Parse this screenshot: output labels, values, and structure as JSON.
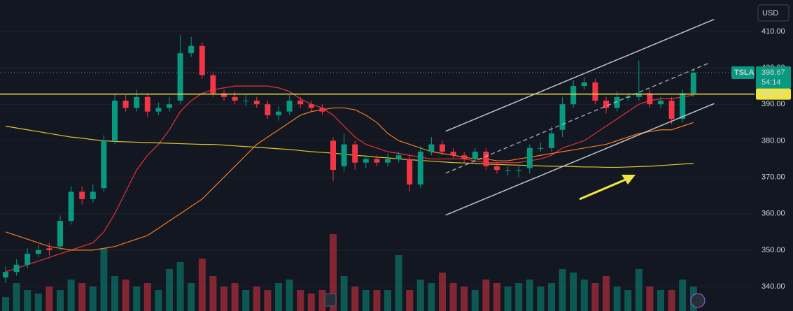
{
  "chart_data": {
    "type": "candlestick",
    "symbol": "TSLA",
    "currency": "USD",
    "countdown": "54:14",
    "last_price": 398.67,
    "up_color": "#089981",
    "down_color": "#f23645",
    "ylim": [
      333.3,
      418.6
    ],
    "yticks": [
      {
        "value": 340,
        "label": "340.00"
      },
      {
        "value": 350,
        "label": "350.00"
      },
      {
        "value": 360,
        "label": "360.00"
      },
      {
        "value": 370,
        "label": "370.00"
      },
      {
        "value": 380,
        "label": "380.00"
      },
      {
        "value": 390,
        "label": "390.00"
      },
      {
        "value": 400,
        "label": "400.00"
      },
      {
        "value": 410,
        "label": "410.00"
      }
    ],
    "grid": true,
    "open": [
      342.5,
      344,
      346,
      349,
      350.5,
      351,
      358,
      366,
      364,
      367,
      380,
      391,
      389,
      392,
      388,
      389,
      391,
      404,
      406,
      398,
      393,
      392,
      391,
      391,
      390,
      387,
      388,
      391,
      390,
      389,
      380,
      373,
      379,
      374,
      375,
      374,
      375,
      375,
      368,
      377,
      379,
      377,
      376,
      375,
      377,
      373,
      372,
      372,
      372.5,
      378,
      378,
      383,
      390,
      395,
      396,
      391,
      389,
      392,
      392,
      393,
      390,
      391,
      386,
      393
    ],
    "high": [
      345.5,
      347.5,
      350.5,
      351.5,
      352,
      359.5,
      367.5,
      367.5,
      368,
      381.5,
      393,
      392.5,
      394,
      393,
      390.5,
      392,
      409,
      408.5,
      407,
      399,
      394,
      393.5,
      392.5,
      392,
      391,
      389.5,
      392.5,
      392,
      391,
      390,
      381,
      382,
      380,
      376,
      376,
      376.5,
      377,
      376,
      378.5,
      381,
      380,
      378,
      377,
      378,
      378,
      374,
      373,
      373,
      379,
      379.5,
      384,
      392,
      396.5,
      397.5,
      397,
      392,
      393.5,
      393,
      402,
      394,
      392,
      392,
      394,
      399.5
    ],
    "low": [
      341,
      343,
      345,
      348,
      348.5,
      350,
      357,
      362.5,
      363,
      366,
      379,
      388,
      388,
      386.5,
      387,
      388,
      390,
      403,
      397,
      392,
      391,
      390,
      389.5,
      389,
      386,
      385.5,
      387,
      389,
      388,
      387,
      369,
      371.5,
      372,
      372.5,
      373,
      373,
      374,
      366,
      367,
      376,
      376,
      375,
      374,
      374,
      372,
      371,
      370.5,
      370,
      371,
      377,
      377,
      381,
      389,
      394,
      390,
      387.5,
      388,
      391,
      391,
      389,
      389,
      384.5,
      385,
      392
    ],
    "close": [
      344,
      346,
      349,
      350,
      350,
      358,
      366,
      364,
      366,
      380,
      391,
      389,
      392,
      388,
      389,
      390,
      404,
      406,
      398,
      393,
      392,
      391,
      391,
      390,
      387,
      388,
      391,
      390,
      389,
      388,
      372,
      379,
      374,
      375,
      374,
      375,
      376,
      368,
      377,
      379,
      377,
      376,
      375,
      377,
      373,
      372,
      372,
      372,
      378,
      378,
      382,
      390,
      395,
      396,
      391,
      389,
      392,
      392,
      393,
      390,
      391,
      386,
      393,
      398.67
    ],
    "volume": [
      20,
      40,
      30,
      25,
      35,
      30,
      45,
      40,
      35,
      90,
      50,
      45,
      35,
      40,
      30,
      60,
      70,
      40,
      75,
      50,
      35,
      40,
      30,
      35,
      30,
      40,
      45,
      30,
      25,
      30,
      110,
      50,
      35,
      30,
      30,
      30,
      80,
      30,
      45,
      40,
      55,
      40,
      35,
      30,
      45,
      40,
      35,
      40,
      45,
      35,
      40,
      60,
      55,
      45,
      40,
      50,
      35,
      30,
      60,
      35,
      30,
      30,
      45,
      35
    ],
    "moving_averages": [
      {
        "color": "#e8313a",
        "values": [
          344,
          345,
          346,
          347,
          348,
          349,
          350,
          351,
          352,
          355,
          360,
          366,
          372,
          376,
          379,
          383,
          388,
          391,
          393,
          394,
          394.5,
          395,
          395,
          395,
          395,
          394.5,
          393.5,
          391.5,
          390,
          389,
          387,
          384,
          381,
          379,
          378,
          377,
          376.5,
          376,
          375.5,
          375,
          375,
          375,
          375,
          374.5,
          374,
          374,
          374,
          374,
          374.5,
          375,
          376,
          378,
          379,
          380,
          382,
          384,
          386,
          388,
          390,
          391,
          391.5,
          391.5,
          392,
          392.5
        ]
      },
      {
        "color": "#f57c20",
        "values": [
          355,
          354,
          353,
          352,
          351,
          350.5,
          350,
          350,
          350,
          350.5,
          351,
          352,
          353,
          354,
          356,
          358,
          360,
          362,
          364,
          367,
          370,
          373,
          376,
          379,
          381,
          383,
          385,
          387,
          388,
          388.5,
          389,
          389,
          388.5,
          387,
          385,
          382,
          380,
          379,
          378,
          377,
          376.5,
          376,
          375.5,
          375,
          375,
          374.5,
          374.5,
          375,
          375.5,
          376,
          376.5,
          377,
          377.5,
          378,
          378.5,
          379,
          380,
          381,
          382,
          382.5,
          383,
          383,
          384,
          385
        ]
      },
      {
        "color": "#e3c52a",
        "values": [
          384,
          383.5,
          383,
          382.5,
          382,
          381.5,
          381,
          380.7,
          380.3,
          380,
          379.8,
          379.7,
          379.6,
          379.5,
          379.4,
          379.3,
          379.2,
          379.1,
          379,
          379,
          378.8,
          378.6,
          378.4,
          378.2,
          378,
          377.8,
          377.6,
          377.3,
          377,
          376.8,
          376.6,
          376.3,
          376,
          375.8,
          375.5,
          375.3,
          375,
          374.8,
          374.6,
          374.4,
          374.2,
          374,
          373.9,
          373.8,
          373.6,
          373.5,
          373.4,
          373.3,
          373.2,
          373.1,
          373,
          373,
          372.9,
          372.8,
          372.8,
          372.7,
          372.7,
          372.8,
          372.9,
          373,
          373.2,
          373.4,
          373.6,
          373.8
        ]
      }
    ],
    "horizontal_line": {
      "value": 392.79,
      "color": "#f0e442"
    },
    "channel": [
      {
        "x": [
          40.3,
          64.9
        ],
        "y": [
          382.6,
          413.3
        ]
      },
      {
        "x": [
          40.3,
          64.5
        ],
        "y": [
          371.1,
          401.4
        ],
        "dashed": true
      },
      {
        "x": [
          40.3,
          64.9
        ],
        "y": [
          359.6,
          390.2
        ]
      }
    ]
  }
}
